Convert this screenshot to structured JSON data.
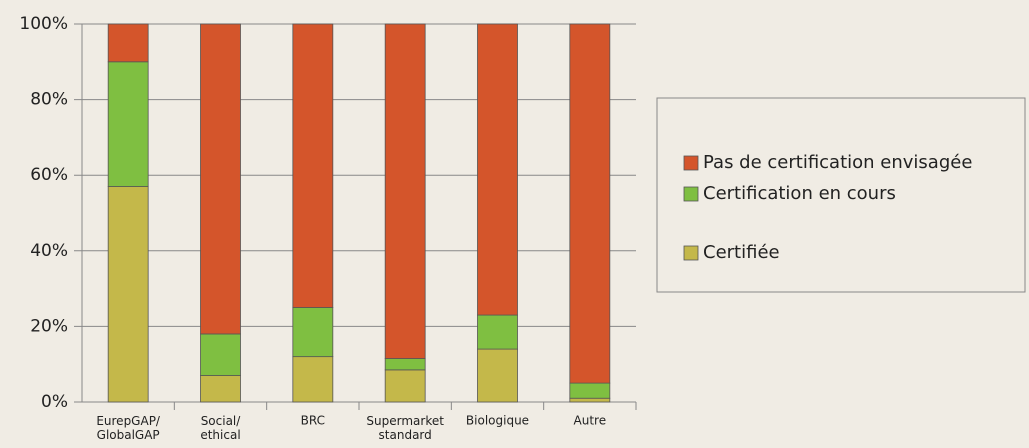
{
  "chart_data": {
    "type": "stacked_bar",
    "categories": [
      "EurepGAP/\nGlobalGAP",
      "Social/\nethical",
      "BRC",
      "Supermarket\nstandard",
      "Biologique",
      "Autre"
    ],
    "series": [
      {
        "name": "Certifiée",
        "color": "#c4b84a",
        "values": [
          57,
          7,
          12,
          8.5,
          14,
          1
        ]
      },
      {
        "name": "Certification en cours",
        "color": "#7fbf41",
        "values": [
          33,
          11,
          13,
          3,
          9,
          4
        ]
      },
      {
        "name": "Pas de certification envisagée",
        "color": "#d4552b",
        "values": [
          10,
          82,
          75,
          88.5,
          77,
          95
        ]
      }
    ],
    "ylim": [
      0,
      100
    ],
    "yticks": [
      {
        "value": 0,
        "label": "0%"
      },
      {
        "value": 20,
        "label": "20%"
      },
      {
        "value": 40,
        "label": "40%"
      },
      {
        "value": 60,
        "label": "60%"
      },
      {
        "value": 80,
        "label": "80%"
      },
      {
        "value": 100,
        "label": "100%"
      }
    ],
    "grid": true,
    "legend": "right"
  }
}
